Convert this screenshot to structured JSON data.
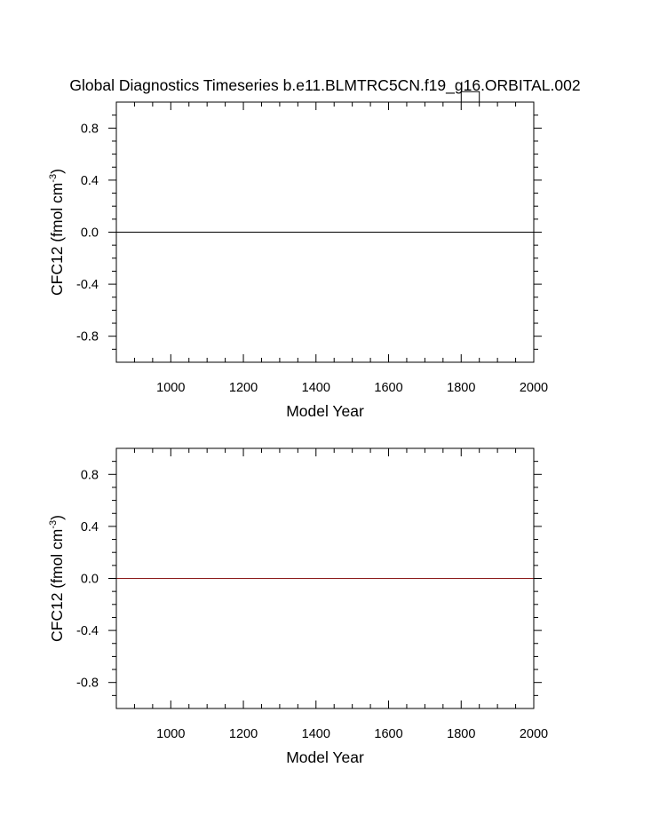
{
  "title": "Global Diagnostics Timeseries b.e11.BLMTRC5CN.f19_g16.ORBITAL.002",
  "chart_data": [
    {
      "type": "line",
      "xlabel": "Model Year",
      "ylabel_main": "CFC12 (fmol cm",
      "ylabel_sup": "-3",
      "ylabel_close": ")",
      "xlim": [
        850,
        2000
      ],
      "ylim": [
        -1,
        1
      ],
      "xticks": [
        1000,
        1200,
        1400,
        1600,
        1800,
        2000
      ],
      "xtick_labels": [
        "1000",
        "1200",
        "1400",
        "1600",
        "1800",
        "2000"
      ],
      "yticks": [
        0.8,
        0.4,
        0.0,
        -0.4,
        -0.8
      ],
      "ytick_labels": [
        "0.8",
        "0.4",
        "0.0",
        "-0.4",
        "-0.8"
      ],
      "grid": false,
      "series": [
        {
          "color": "#000000",
          "x": [
            850,
            2000
          ],
          "y": [
            0,
            0
          ]
        },
        {
          "color": "#000000",
          "x": [
            1800,
            1800,
            1850,
            1850
          ],
          "y": [
            1,
            1.08,
            1.08,
            1
          ]
        }
      ]
    },
    {
      "type": "line",
      "xlabel": "Model Year",
      "ylabel_main": "CFC12 (fmol cm",
      "ylabel_sup": "-3",
      "ylabel_close": ")",
      "xlim": [
        850,
        2000
      ],
      "ylim": [
        -1,
        1
      ],
      "xticks": [
        1000,
        1200,
        1400,
        1600,
        1800,
        2000
      ],
      "xtick_labels": [
        "1000",
        "1200",
        "1400",
        "1600",
        "1800",
        "2000"
      ],
      "yticks": [
        0.8,
        0.4,
        0.0,
        -0.4,
        -0.8
      ],
      "ytick_labels": [
        "0.8",
        "0.4",
        "0.0",
        "-0.4",
        "-0.8"
      ],
      "grid": false,
      "series": [
        {
          "color": "#8b1a1a",
          "x": [
            850,
            2000
          ],
          "y": [
            0,
            0
          ]
        }
      ]
    }
  ]
}
